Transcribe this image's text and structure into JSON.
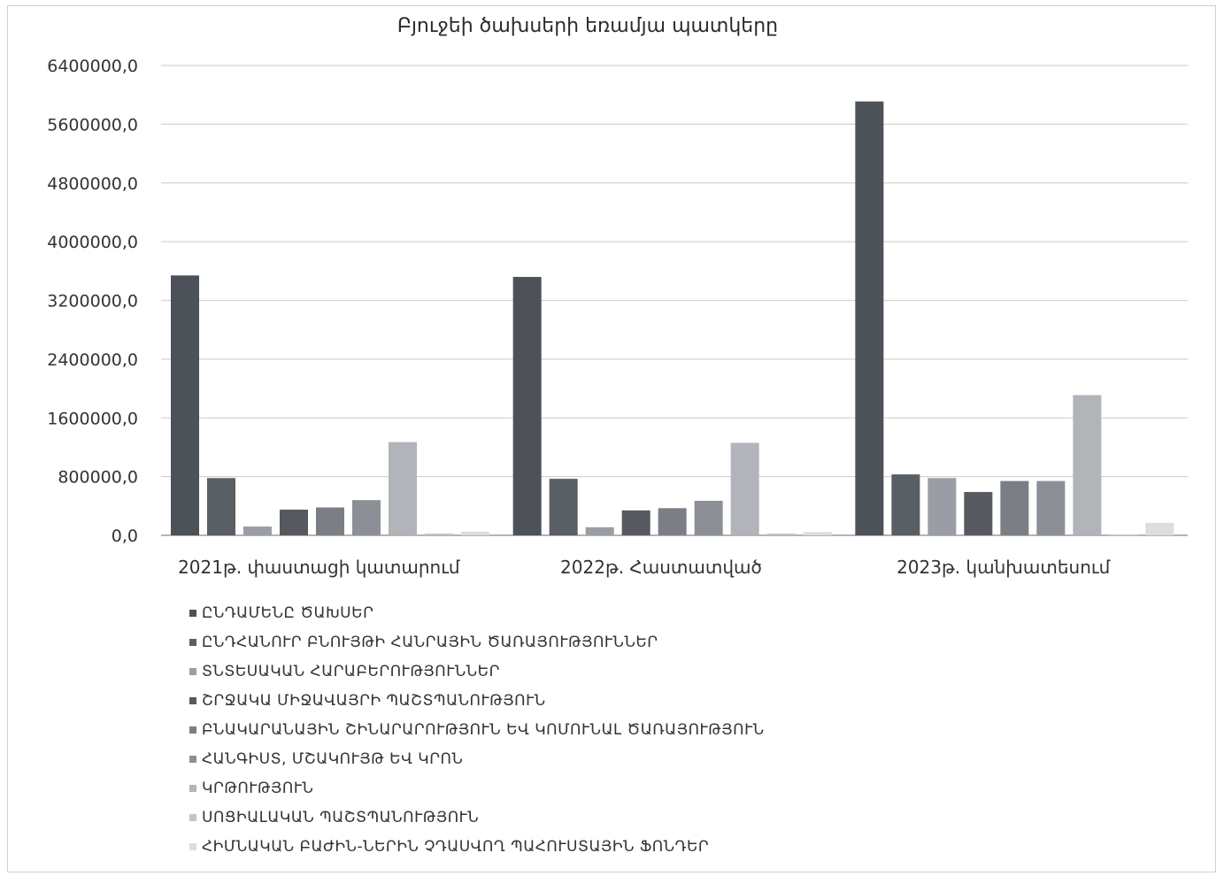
{
  "chart_data": {
    "type": "bar",
    "title": "Բյուջեի ծախսերի եռամյա պատկերը",
    "xlabel": "",
    "ylabel": "",
    "ylim": [
      0,
      6400000
    ],
    "y_ticks": [
      0,
      800000,
      1600000,
      2400000,
      3200000,
      4000000,
      4800000,
      5600000,
      6400000
    ],
    "y_tick_labels": [
      "0,0",
      "800000,0",
      "1600000,0",
      "2400000,0",
      "3200000,0",
      "4000000,0",
      "4800000,0",
      "5600000,0",
      "6400000,0"
    ],
    "grid": true,
    "legend_position": "bottom",
    "categories": [
      "2021թ. փաստացի կատարում",
      "2022թ. Հաստատված",
      "2023թ. կանխատեսում"
    ],
    "series": [
      {
        "name": "ԸՆԴԱՄԵՆԸ ԾԱԽՍԵՐ",
        "color": "#4d5158",
        "values": [
          3540000,
          3520000,
          5910000
        ]
      },
      {
        "name": "ԸՆԴՀԱՆՈՒՐ ԲՆՈՒՅԹԻ ՀԱՆՐԱՅԻՆ ԾԱՌԱՅՈՒԹՅՈՒՆՆԵՐ",
        "color": "#5a5e65",
        "values": [
          780000,
          770000,
          830000
        ]
      },
      {
        "name": "ՏՆՏԵՍԱԿԱՆ ՀԱՐԱԲԵՐՈՒԹՅՈՒՆՆԵՐ",
        "color": "#9a9ea4",
        "values": [
          120000,
          110000,
          780000
        ]
      },
      {
        "name": "ՇՐՋԱԿԱ ՄԻՋԱՎԱՅՐԻ ՊԱՇՏՊԱՆՈՒԹՅՈՒՆ",
        "color": "#56595f",
        "values": [
          350000,
          340000,
          590000
        ]
      },
      {
        "name": "ԲՆԱԿԱՐԱՆԱՅԻՆ ՇԻՆԱՐԱՐՈՒԹՅՈՒՆ ԵՎ ԿՈՄՈՒՆԱԼ ԾԱՌԱՅՈՒԹՅՈՒՆ",
        "color": "#7b7f85",
        "values": [
          380000,
          370000,
          740000
        ]
      },
      {
        "name": "ՀԱՆԳԻՍՏ, ՄՇԱԿՈՒՅԹ ԵՎ ԿՐՈՆ",
        "color": "#8c9096",
        "values": [
          480000,
          470000,
          740000
        ]
      },
      {
        "name": "ԿՐԹՈՒԹՅՈՒՆ",
        "color": "#b1b4b9",
        "values": [
          1270000,
          1260000,
          1910000
        ]
      },
      {
        "name": "ՍՈՑԻԱԼԱԿԱՆ ՊԱՇՏՊԱՆՈՒԹՅՈՒՆ",
        "color": "#c3c5c9",
        "values": [
          25000,
          25000,
          10000
        ]
      },
      {
        "name": "ՀԻՄՆԱԿԱՆ ԲԱԺԻՆ-ՆԵՐԻՆ ՉԴԱՍՎՈՂ ՊԱՀՈՒՍՏԱՅԻՆ ՖՈՆԴԵՐ",
        "color": "#dcdde0",
        "values": [
          50000,
          45000,
          170000
        ]
      }
    ]
  }
}
